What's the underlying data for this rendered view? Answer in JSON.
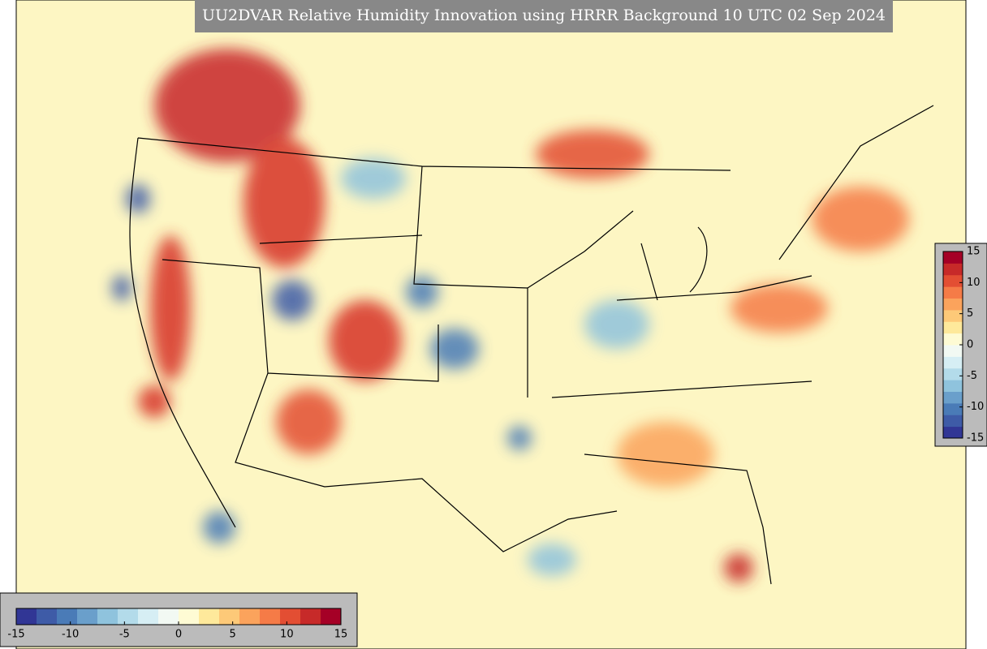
{
  "title": "UU2DVAR Relative Humidity Innovation using HRRR Background 10 UTC 02 Sep 2024",
  "colorbar": {
    "lim": [
      -15,
      15
    ],
    "colors": [
      "#313695",
      "#3e5ba7",
      "#4a7bb7",
      "#6a9fcb",
      "#8fc3dd",
      "#b3dbea",
      "#d6eef4",
      "#f2f9f3",
      "#fefbd4",
      "#fee99b",
      "#fdc978",
      "#fba35c",
      "#f57b47",
      "#e34e33",
      "#c72a29",
      "#a50026"
    ],
    "ticks": [
      -15,
      -10,
      -5,
      0,
      5,
      10,
      15
    ]
  }
}
